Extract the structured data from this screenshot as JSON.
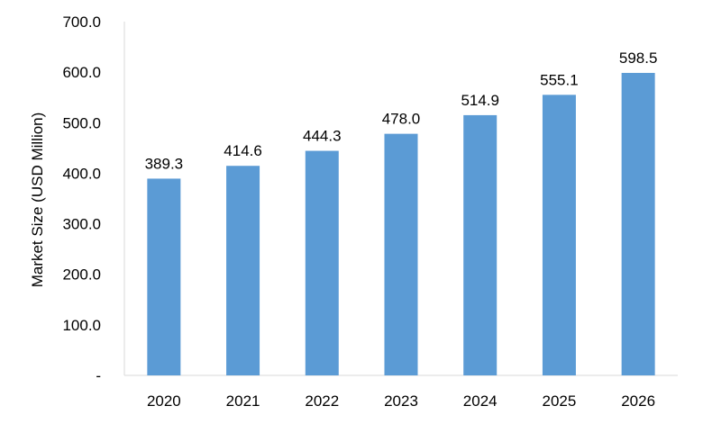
{
  "chart_data": {
    "type": "bar",
    "title": "",
    "xlabel": "",
    "ylabel": "Market Size (USD Million)",
    "categories": [
      "2020",
      "2021",
      "2022",
      "2023",
      "2024",
      "2025",
      "2026"
    ],
    "values": [
      389.3,
      414.6,
      444.3,
      478.0,
      514.9,
      555.1,
      598.5
    ],
    "data_labels": [
      "389.3",
      "414.6",
      "444.3",
      "478.0",
      "514.9",
      "555.1",
      "598.5"
    ],
    "ylim": [
      0,
      700
    ],
    "y_ticks": [
      0,
      100,
      200,
      300,
      400,
      500,
      600,
      700
    ],
    "y_tick_labels": [
      "-",
      "100.0",
      "200.0",
      "300.0",
      "400.0",
      "500.0",
      "600.0",
      "700.0"
    ],
    "grid": false,
    "legend": "none",
    "bar_color": "#5b9bd5",
    "axis_color": "#d9d9d9"
  }
}
